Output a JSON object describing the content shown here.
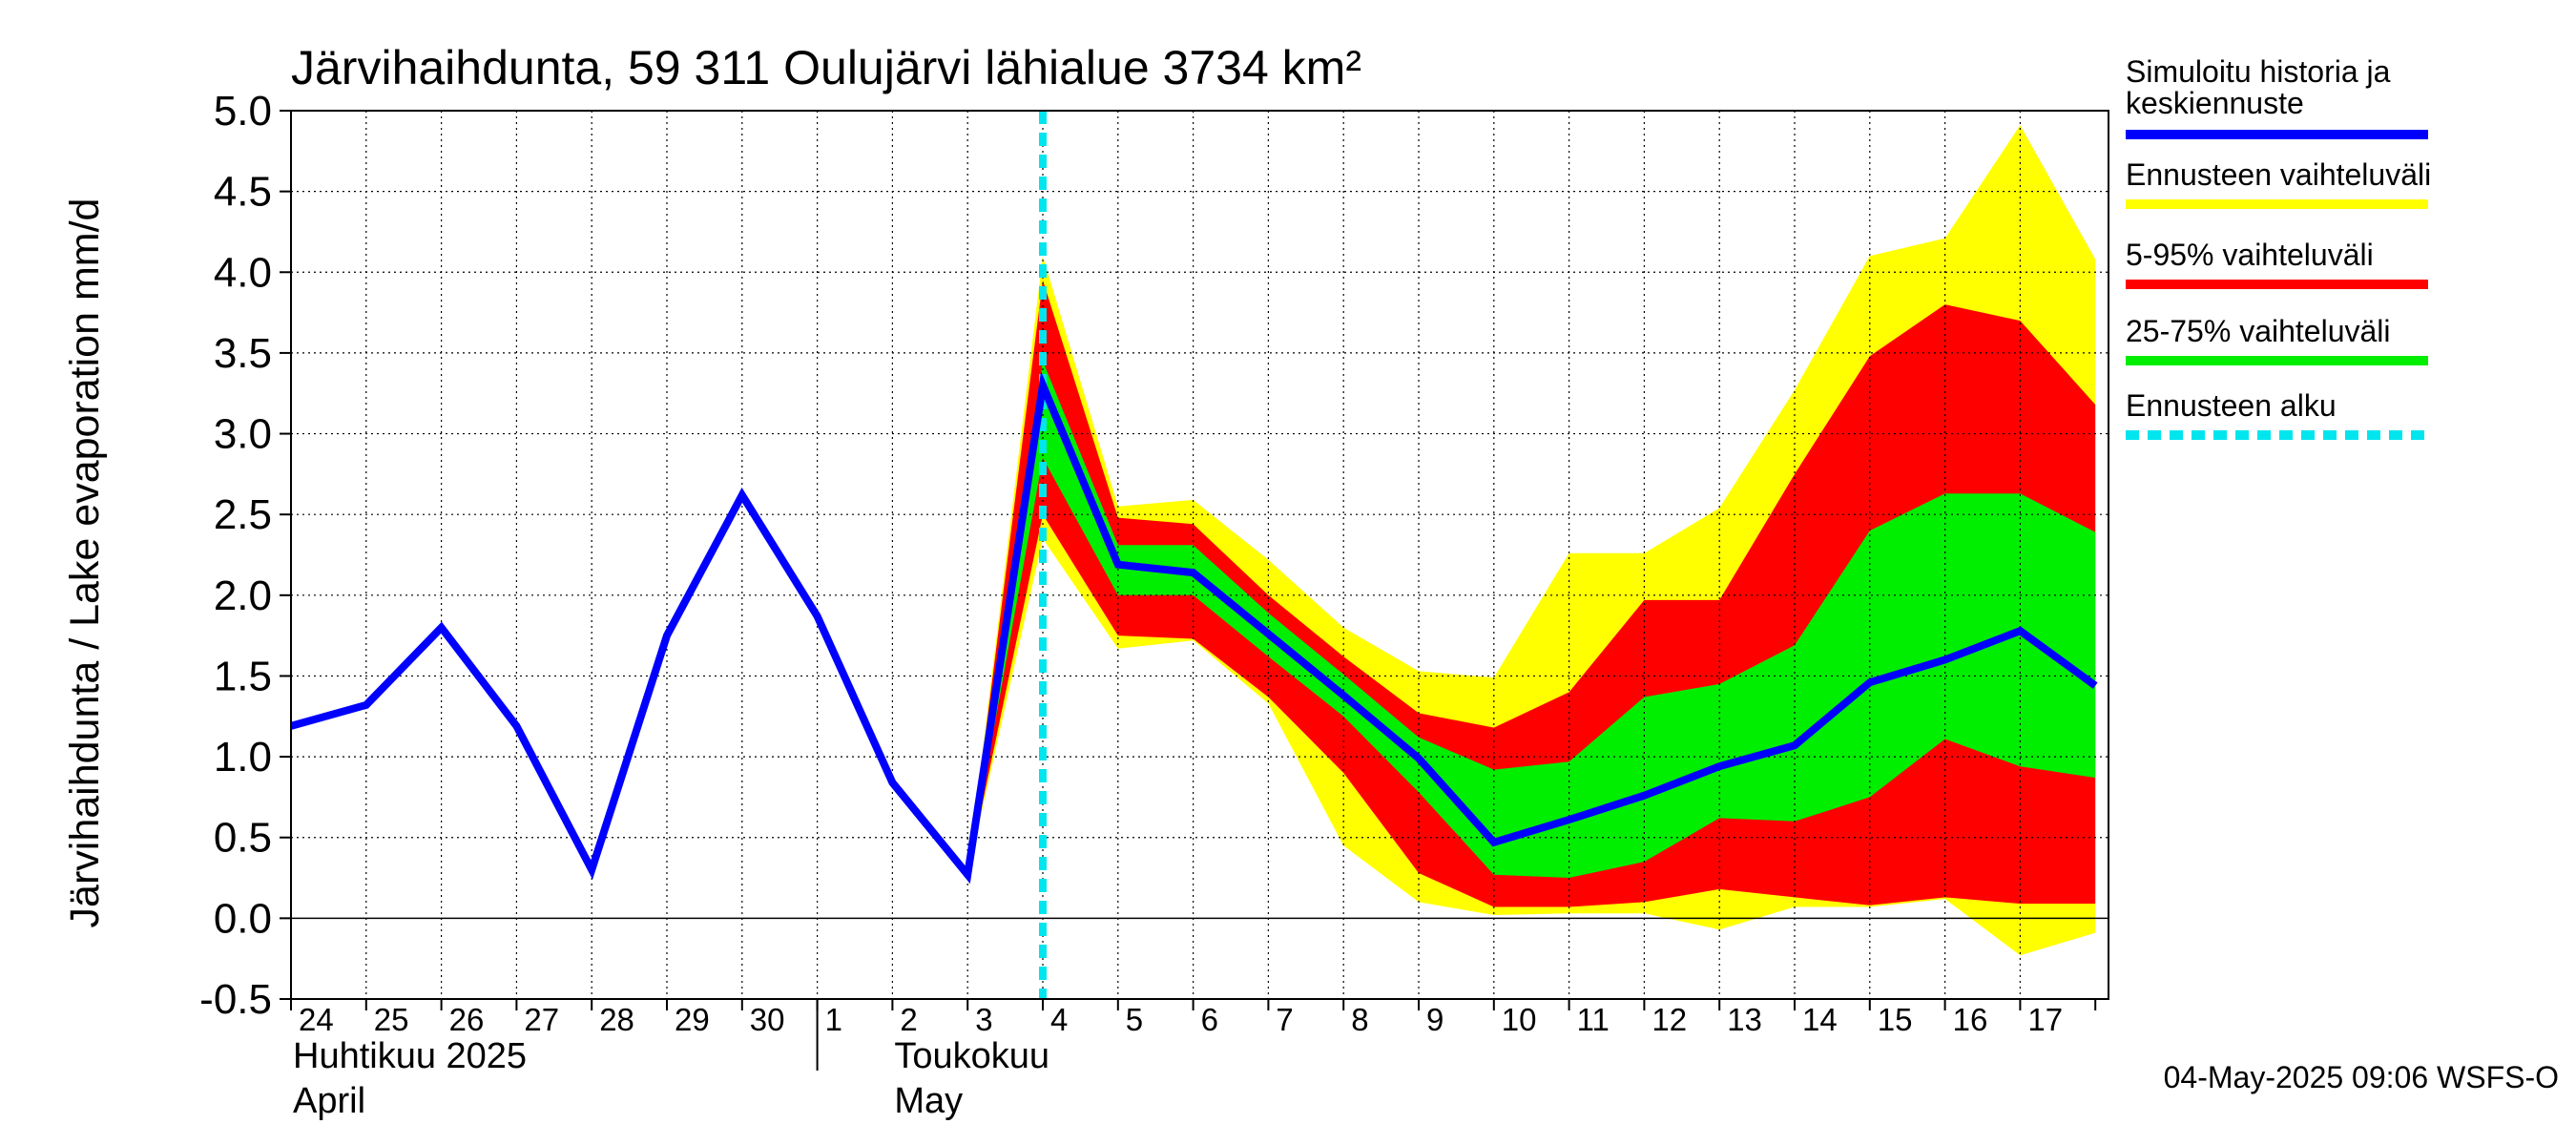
{
  "chart_data": {
    "type": "area",
    "title": "Järvihaihdunta, 59 311 Oulujärvi lähialue 3734 km²",
    "ylabel": "Järvihaihdunta / Lake evaporation   mm/d",
    "ylim": [
      -0.5,
      5.0
    ],
    "yticks": [
      -0.5,
      0.0,
      0.5,
      1.0,
      1.5,
      2.0,
      2.5,
      3.0,
      3.5,
      4.0,
      4.5,
      5.0
    ],
    "ytick_labels": [
      "-0.5",
      "0.0",
      "0.5",
      "1.0",
      "1.5",
      "2.0",
      "2.5",
      "3.0",
      "3.5",
      "4.0",
      "4.5",
      "5.0"
    ],
    "x_start": "2025-04-24",
    "x_end": "2025-05-18",
    "x_tick_labels": [
      "24",
      "25",
      "26",
      "27",
      "28",
      "29",
      "30",
      "1",
      "2",
      "3",
      "4",
      "5",
      "6",
      "7",
      "8",
      "9",
      "10",
      "11",
      "12",
      "13",
      "14",
      "15",
      "16",
      "17"
    ],
    "month_labels": [
      {
        "line1": "Huhtikuu  2025",
        "line2": "April"
      },
      {
        "line1": "Toukokuu",
        "line2": "May"
      }
    ],
    "grid": true,
    "forecast_start": "2025-05-04",
    "series": [
      {
        "name": "Simuloitu historia ja keskiennuste",
        "color": "#0000ff",
        "x": [
          "2025-04-24",
          "2025-04-25",
          "2025-04-26",
          "2025-04-27",
          "2025-04-28",
          "2025-04-29",
          "2025-04-30",
          "2025-05-01",
          "2025-05-02",
          "2025-05-03",
          "2025-05-04",
          "2025-05-05",
          "2025-05-06",
          "2025-05-07",
          "2025-05-08",
          "2025-05-09",
          "2025-05-10",
          "2025-05-11",
          "2025-05-12",
          "2025-05-13",
          "2025-05-14",
          "2025-05-15",
          "2025-05-16",
          "2025-05-17",
          "2025-05-18"
        ],
        "values": [
          1.19,
          1.32,
          1.8,
          1.19,
          0.3,
          1.75,
          2.62,
          1.87,
          0.84,
          0.27,
          3.3,
          2.19,
          2.14,
          1.76,
          1.38,
          0.99,
          0.47,
          0.61,
          0.76,
          0.94,
          1.07,
          1.46,
          1.6,
          1.78,
          1.44
        ]
      }
    ],
    "bands": [
      {
        "name": "Ennusteen vaihteluväli",
        "color": "#ffff00",
        "x": [
          "2025-05-03",
          "2025-05-04",
          "2025-05-05",
          "2025-05-06",
          "2025-05-07",
          "2025-05-08",
          "2025-05-09",
          "2025-05-10",
          "2025-05-11",
          "2025-05-12",
          "2025-05-13",
          "2025-05-14",
          "2025-05-15",
          "2025-05-16",
          "2025-05-17",
          "2025-05-18"
        ],
        "lower": [
          0.27,
          2.35,
          1.67,
          1.72,
          1.33,
          0.45,
          0.1,
          0.02,
          0.03,
          0.03,
          -0.07,
          0.07,
          0.07,
          0.12,
          -0.23,
          -0.09
        ],
        "upper": [
          0.27,
          4.1,
          2.55,
          2.59,
          2.22,
          1.8,
          1.53,
          1.49,
          2.26,
          2.26,
          2.54,
          3.27,
          4.1,
          4.21,
          4.91,
          4.08
        ]
      },
      {
        "name": "5-95% vaihteluväli",
        "color": "#ff0000",
        "x": [
          "2025-05-03",
          "2025-05-04",
          "2025-05-05",
          "2025-05-06",
          "2025-05-07",
          "2025-05-08",
          "2025-05-09",
          "2025-05-10",
          "2025-05-11",
          "2025-05-12",
          "2025-05-13",
          "2025-05-14",
          "2025-05-15",
          "2025-05-16",
          "2025-05-17",
          "2025-05-18"
        ],
        "lower": [
          0.27,
          2.5,
          1.75,
          1.73,
          1.37,
          0.9,
          0.28,
          0.07,
          0.07,
          0.1,
          0.18,
          0.13,
          0.08,
          0.13,
          0.09,
          0.09
        ],
        "upper": [
          0.27,
          3.95,
          2.48,
          2.44,
          2.0,
          1.62,
          1.27,
          1.18,
          1.4,
          1.97,
          1.97,
          2.75,
          3.48,
          3.8,
          3.7,
          3.18
        ]
      },
      {
        "name": "25-75% vaihteluväli",
        "color": "#00ee00",
        "x": [
          "2025-05-03",
          "2025-05-04",
          "2025-05-05",
          "2025-05-06",
          "2025-05-07",
          "2025-05-08",
          "2025-05-09",
          "2025-05-10",
          "2025-05-11",
          "2025-05-12",
          "2025-05-13",
          "2025-05-14",
          "2025-05-15",
          "2025-05-16",
          "2025-05-17",
          "2025-05-18"
        ],
        "lower": [
          0.27,
          2.85,
          2.0,
          2.0,
          1.62,
          1.25,
          0.78,
          0.27,
          0.25,
          0.35,
          0.62,
          0.6,
          0.75,
          1.11,
          0.94,
          0.87
        ],
        "upper": [
          0.27,
          3.45,
          2.31,
          2.31,
          1.89,
          1.51,
          1.12,
          0.92,
          0.97,
          1.37,
          1.45,
          1.69,
          2.4,
          2.63,
          2.63,
          2.39
        ]
      }
    ],
    "legend": {
      "placement": "right",
      "items": [
        {
          "label_line1": "Simuloitu historia ja",
          "label_line2": "keskiennuste",
          "color": "#0000ff",
          "style": "solid"
        },
        {
          "label_line1": "Ennusteen vaihteluväli",
          "label_line2": "",
          "color": "#ffff00",
          "style": "solid"
        },
        {
          "label_line1": "5-95% vaihteluväli",
          "label_line2": "",
          "color": "#ff0000",
          "style": "solid"
        },
        {
          "label_line1": "25-75% vaihteluväli",
          "label_line2": "",
          "color": "#00ee00",
          "style": "solid"
        },
        {
          "label_line1": "Ennusteen alku",
          "label_line2": "",
          "color": "#00e5ee",
          "style": "dashed"
        }
      ]
    },
    "timestamp": "04-May-2025 09:06 WSFS-O"
  }
}
